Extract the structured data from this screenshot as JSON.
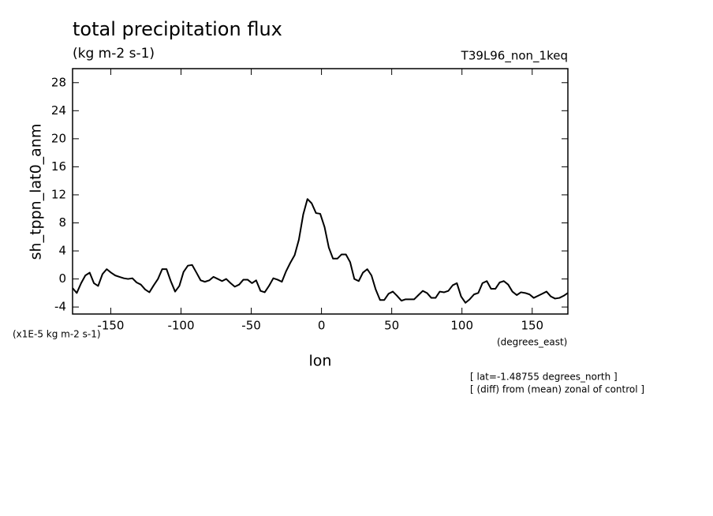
{
  "chart_data": {
    "type": "line",
    "title": "total precipitation flux",
    "subtitle": "(kg m-2 s-1)",
    "dataset": "T39L96_non_1keq",
    "y_label": "sh_tppn_lat0_anm",
    "y_units": "(x1E-5 kg m-2 s-1)",
    "x_label": "lon",
    "x_units": "(degrees_east)",
    "annotations": [
      "[ lat=-1.48755 degrees_north ]",
      "[ (diff) from (mean) zonal of control ]"
    ],
    "xlim": [
      -177.2,
      175.4
    ],
    "ylim": [
      -5,
      30
    ],
    "xticks": [
      -150,
      -100,
      -50,
      0,
      50,
      100,
      150
    ],
    "yticks": [
      -4,
      0,
      4,
      8,
      12,
      16,
      20,
      24,
      28
    ],
    "color": "#000000",
    "x": [
      -177.2,
      -174.2,
      -171.1,
      -168.1,
      -165.0,
      -162.0,
      -159.0,
      -155.9,
      -152.9,
      -149.8,
      -146.8,
      -143.8,
      -140.7,
      -137.7,
      -134.6,
      -131.6,
      -128.6,
      -125.5,
      -122.5,
      -119.4,
      -116.4,
      -113.4,
      -110.3,
      -107.3,
      -104.2,
      -101.2,
      -98.2,
      -95.1,
      -92.1,
      -89.0,
      -86.0,
      -83.0,
      -79.9,
      -76.9,
      -73.8,
      -70.8,
      -67.8,
      -64.7,
      -61.7,
      -58.6,
      -55.6,
      -52.6,
      -49.5,
      -46.5,
      -43.4,
      -40.4,
      -37.4,
      -34.3,
      -31.3,
      -28.2,
      -25.2,
      -22.2,
      -19.1,
      -16.1,
      -13.0,
      -10.0,
      -7.0,
      -3.9,
      -0.9,
      2.2,
      5.2,
      8.2,
      11.3,
      14.3,
      17.4,
      20.4,
      23.4,
      26.5,
      29.5,
      32.6,
      35.6,
      38.6,
      41.7,
      44.7,
      47.8,
      50.8,
      53.8,
      56.9,
      59.9,
      63.0,
      66.0,
      69.0,
      72.1,
      75.1,
      78.2,
      81.2,
      84.2,
      87.3,
      90.3,
      93.4,
      96.4,
      99.4,
      102.5,
      105.5,
      108.6,
      111.6,
      114.6,
      117.7,
      120.7,
      123.8,
      126.8,
      129.8,
      132.9,
      135.9,
      139.0,
      142.0,
      145.0,
      148.1,
      151.1,
      154.2,
      157.2,
      160.2,
      163.3,
      166.3,
      169.4,
      172.4,
      175.4
    ],
    "values": [
      -1.3,
      -2.0,
      -0.6,
      0.5,
      0.9,
      -0.6,
      -1.0,
      0.7,
      1.4,
      0.9,
      0.5,
      0.3,
      0.1,
      0.0,
      0.1,
      -0.5,
      -0.8,
      -1.5,
      -1.9,
      -0.9,
      0.0,
      1.4,
      1.4,
      -0.3,
      -1.8,
      -1.0,
      1.0,
      1.9,
      2.0,
      0.9,
      -0.2,
      -0.4,
      -0.2,
      0.3,
      0.0,
      -0.3,
      0.0,
      -0.6,
      -1.1,
      -0.8,
      -0.1,
      -0.1,
      -0.6,
      -0.2,
      -1.7,
      -1.9,
      -1.0,
      0.1,
      -0.1,
      -0.4,
      1.1,
      2.3,
      3.4,
      5.6,
      9.2,
      11.4,
      10.8,
      9.4,
      9.3,
      7.4,
      4.5,
      2.9,
      2.9,
      3.5,
      3.5,
      2.4,
      0.0,
      -0.3,
      0.9,
      1.4,
      0.5,
      -1.5,
      -3.0,
      -3.0,
      -2.1,
      -1.8,
      -2.4,
      -3.1,
      -2.9,
      -2.9,
      -2.9,
      -2.3,
      -1.7,
      -2.0,
      -2.7,
      -2.7,
      -1.8,
      -1.9,
      -1.7,
      -0.9,
      -0.6,
      -2.5,
      -3.4,
      -2.9,
      -2.2,
      -2.0,
      -0.6,
      -0.3,
      -1.4,
      -1.4,
      -0.5,
      -0.3,
      -0.8,
      -1.8,
      -2.3,
      -1.9,
      -2.0,
      -2.2,
      -2.7,
      -2.4,
      -2.1,
      -1.8,
      -2.5,
      -2.8,
      -2.7,
      -2.4,
      -2.0
    ]
  }
}
